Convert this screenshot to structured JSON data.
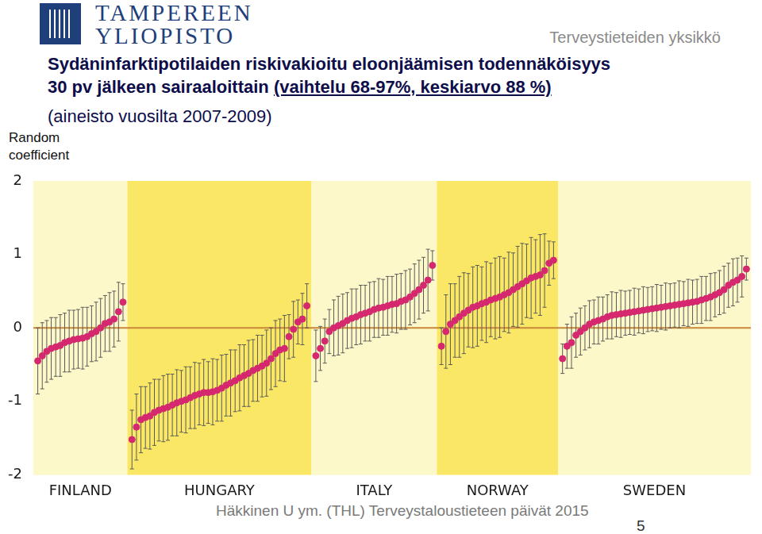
{
  "header": {
    "logo": [
      "TAMPEREEN",
      "YLIOPISTO"
    ],
    "unit": "Terveystieteiden yksikkö"
  },
  "footer": "Häkkinen U ym. (THL) Terveystaloustieteen päivät 2015",
  "page_number": 5,
  "chart_data": {
    "type": "scatter",
    "title": [
      "Sydäninfarktipotilaiden riskivakioitu eloonjäämisen todennäköisyys",
      "30 pv jälkeen sairaaloittain (vaihtelu 68-97%, keskiarvo 88 %)"
    ],
    "subtitle": "(aineisto vuosilta 2007-2009)",
    "y_label": "Random coefficient",
    "ylim": [
      -2,
      2
    ],
    "yticks": [
      -2,
      -1,
      0,
      1,
      2
    ],
    "hlines": [
      0
    ],
    "grid": false,
    "series": [
      {
        "name": "FINLAND",
        "color": "#d6286f",
        "marker": "circle",
        "values": [
          -0.45,
          -0.38,
          -0.32,
          -0.28,
          -0.26,
          -0.24,
          -0.2,
          -0.18,
          -0.16,
          -0.15,
          -0.14,
          -0.12,
          -0.08,
          -0.05,
          0.0,
          0.06,
          0.08,
          0.12,
          0.22,
          0.35
        ],
        "error": [
          0.45,
          0.45,
          0.42,
          0.42,
          0.4,
          0.42,
          0.4,
          0.42,
          0.4,
          0.4,
          0.42,
          0.4,
          0.38,
          0.4,
          0.4,
          0.38,
          0.4,
          0.38,
          0.4,
          0.25
        ]
      },
      {
        "name": "HUNGARY",
        "color": "#d6286f",
        "marker": "circle",
        "values": [
          -1.52,
          -1.35,
          -1.25,
          -1.22,
          -1.2,
          -1.15,
          -1.12,
          -1.1,
          -1.08,
          -1.05,
          -1.02,
          -1.0,
          -0.98,
          -0.95,
          -0.92,
          -0.9,
          -0.88,
          -0.88,
          -0.87,
          -0.85,
          -0.82,
          -0.78,
          -0.75,
          -0.72,
          -0.68,
          -0.65,
          -0.62,
          -0.58,
          -0.55,
          -0.52,
          -0.48,
          -0.42,
          -0.35,
          -0.3,
          -0.28,
          -0.12,
          -0.02,
          0.08,
          0.12,
          0.3
        ],
        "error": [
          0.4,
          0.45,
          0.45,
          0.42,
          0.45,
          0.45,
          0.42,
          0.45,
          0.45,
          0.42,
          0.45,
          0.42,
          0.45,
          0.42,
          0.45,
          0.42,
          0.45,
          0.42,
          0.45,
          0.42,
          0.45,
          0.42,
          0.45,
          0.42,
          0.45,
          0.42,
          0.45,
          0.42,
          0.45,
          0.42,
          0.45,
          0.42,
          0.45,
          0.42,
          0.45,
          0.3,
          0.38,
          0.3,
          0.35,
          0.3
        ]
      },
      {
        "name": "ITALY",
        "color": "#d6286f",
        "marker": "circle",
        "values": [
          -0.38,
          -0.28,
          -0.18,
          -0.05,
          0.0,
          0.03,
          0.06,
          0.1,
          0.13,
          0.15,
          0.18,
          0.2,
          0.22,
          0.25,
          0.27,
          0.28,
          0.3,
          0.32,
          0.33,
          0.36,
          0.38,
          0.42,
          0.47,
          0.52,
          0.58,
          0.65,
          0.85
        ],
        "error": [
          0.35,
          0.3,
          0.3,
          0.3,
          0.38,
          0.4,
          0.4,
          0.38,
          0.4,
          0.38,
          0.4,
          0.38,
          0.4,
          0.38,
          0.4,
          0.38,
          0.4,
          0.38,
          0.4,
          0.38,
          0.4,
          0.38,
          0.4,
          0.4,
          0.38,
          0.42,
          0.2
        ]
      },
      {
        "name": "NORWAY",
        "color": "#d6286f",
        "marker": "circle",
        "values": [
          -0.25,
          -0.05,
          0.05,
          0.1,
          0.15,
          0.2,
          0.24,
          0.28,
          0.3,
          0.33,
          0.35,
          0.38,
          0.4,
          0.42,
          0.45,
          0.48,
          0.52,
          0.56,
          0.6,
          0.64,
          0.68,
          0.7,
          0.72,
          0.78,
          0.88,
          0.92
        ],
        "error": [
          0.25,
          0.5,
          0.55,
          0.5,
          0.55,
          0.55,
          0.5,
          0.55,
          0.55,
          0.5,
          0.55,
          0.5,
          0.55,
          0.55,
          0.5,
          0.55,
          0.5,
          0.55,
          0.55,
          0.5,
          0.55,
          0.5,
          0.55,
          0.5,
          0.3,
          0.25
        ]
      },
      {
        "name": "SWEDEN",
        "color": "#d6286f",
        "marker": "circle",
        "values": [
          -0.42,
          -0.25,
          -0.2,
          -0.1,
          -0.05,
          0.0,
          0.05,
          0.08,
          0.1,
          0.12,
          0.15,
          0.17,
          0.18,
          0.19,
          0.2,
          0.21,
          0.22,
          0.23,
          0.24,
          0.25,
          0.26,
          0.27,
          0.28,
          0.29,
          0.3,
          0.31,
          0.32,
          0.33,
          0.34,
          0.35,
          0.36,
          0.38,
          0.4,
          0.42,
          0.45,
          0.48,
          0.52,
          0.58,
          0.62,
          0.65,
          0.7,
          0.8
        ],
        "error": [
          0.2,
          0.3,
          0.35,
          0.3,
          0.32,
          0.3,
          0.32,
          0.3,
          0.32,
          0.3,
          0.3,
          0.32,
          0.3,
          0.32,
          0.3,
          0.3,
          0.32,
          0.3,
          0.32,
          0.3,
          0.3,
          0.32,
          0.3,
          0.32,
          0.3,
          0.3,
          0.32,
          0.3,
          0.32,
          0.3,
          0.3,
          0.32,
          0.3,
          0.32,
          0.3,
          0.3,
          0.32,
          0.3,
          0.32,
          0.3,
          0.28,
          0.15
        ]
      }
    ]
  }
}
